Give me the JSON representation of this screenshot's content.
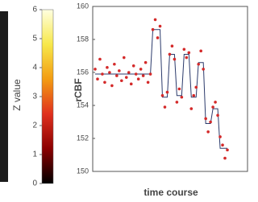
{
  "chart_data": [
    {
      "type": "colorbar",
      "label": "Z value",
      "ylim": [
        0,
        6
      ],
      "yticks": [
        0,
        1,
        2,
        3,
        4,
        5,
        6
      ],
      "colors": [
        "#000000",
        "#8b0000",
        "#e0301e",
        "#f39c12",
        "#f7e84a",
        "#ffffe0"
      ]
    },
    {
      "type": "line",
      "ylabel": "rCBF",
      "xlabel": "time course",
      "ylim": [
        150,
        160
      ],
      "yticks": [
        150,
        152,
        154,
        156,
        158,
        160
      ],
      "series": [
        {
          "color": "#d42a2a",
          "values": [
            156.2,
            155.6,
            156.8,
            155.9,
            155.4,
            156.3,
            156.0,
            155.2,
            156.5,
            155.8,
            156.1,
            155.5,
            156.9,
            155.7,
            156.0,
            155.3,
            156.4,
            155.9,
            155.6,
            156.2,
            155.8,
            156.6,
            155.4,
            155.9,
            158.6,
            159.2,
            158.1,
            158.8,
            154.6,
            153.9,
            154.8,
            157.1,
            157.6,
            156.8,
            154.2,
            155.0,
            154.5,
            157.4,
            156.9,
            157.2,
            153.8,
            154.6,
            155.1,
            156.5,
            157.3,
            156.2,
            153.2,
            152.4,
            153.0,
            153.9,
            154.2,
            153.4,
            152.1,
            151.6,
            150.8,
            151.3
          ]
        },
        {
          "color": "#2b3a6b",
          "values": [
            155.9,
            155.9,
            155.9,
            155.9,
            155.9,
            155.9,
            155.9,
            155.9,
            155.9,
            155.9,
            155.9,
            155.9,
            155.9,
            155.9,
            155.9,
            155.9,
            155.9,
            155.9,
            155.9,
            155.9,
            155.9,
            155.9,
            155.9,
            155.9,
            158.6,
            158.6,
            158.6,
            158.6,
            154.5,
            154.5,
            154.5,
            157.1,
            157.1,
            157.1,
            154.6,
            154.6,
            154.6,
            157.1,
            157.1,
            157.1,
            154.5,
            154.5,
            154.5,
            156.6,
            156.6,
            156.6,
            152.9,
            152.9,
            152.9,
            153.8,
            153.8,
            153.8,
            151.4,
            151.4,
            151.4,
            151.4
          ]
        }
      ]
    }
  ]
}
